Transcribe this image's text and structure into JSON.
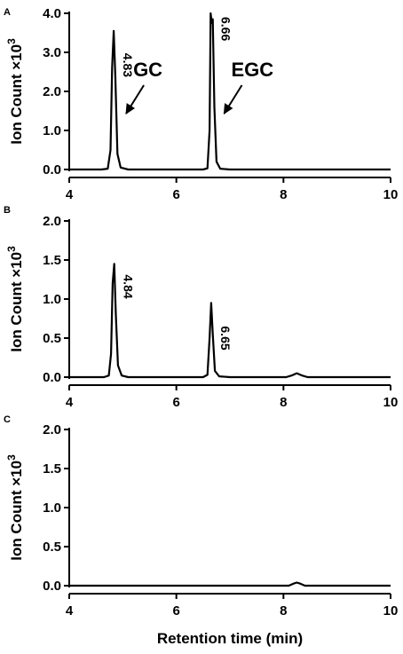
{
  "chart_data": [
    {
      "panel": "A",
      "type": "line",
      "xlabel": "",
      "ylabel": "Ion Count",
      "ylabel_multiplier": "×10",
      "ylabel_exponent": "3",
      "xlim": [
        4,
        10
      ],
      "ylim": [
        0,
        4.0
      ],
      "xticks": [
        "4",
        "6",
        "8",
        "10"
      ],
      "yticks": [
        "0.0",
        "1.0",
        "2.0",
        "3.0",
        "4.0"
      ],
      "series": [
        {
          "points": [
            [
              4.0,
              0.0
            ],
            [
              4.6,
              0.0
            ],
            [
              4.72,
              0.02
            ],
            [
              4.77,
              0.5
            ],
            [
              4.8,
              2.6
            ],
            [
              4.83,
              3.55
            ],
            [
              4.86,
              2.4
            ],
            [
              4.9,
              0.4
            ],
            [
              4.96,
              0.05
            ],
            [
              5.1,
              0.0
            ],
            [
              6.5,
              0.0
            ],
            [
              6.58,
              0.03
            ],
            [
              6.62,
              1.0
            ],
            [
              6.64,
              4.0
            ],
            [
              6.66,
              3.75
            ],
            [
              6.68,
              3.85
            ],
            [
              6.71,
              1.6
            ],
            [
              6.75,
              0.2
            ],
            [
              6.82,
              0.02
            ],
            [
              7.0,
              0.0
            ],
            [
              10.0,
              0.0
            ]
          ]
        }
      ],
      "peak_labels": [
        {
          "text": "4.83",
          "x": 4.83,
          "y": 3.55
        },
        {
          "text": "6.66",
          "x": 6.66,
          "y": 4.0
        }
      ],
      "annotations": [
        {
          "text": "GC",
          "x": 4.83,
          "y": 3.55
        },
        {
          "text": "EGC",
          "x": 6.66,
          "y": 4.0
        }
      ]
    },
    {
      "panel": "B",
      "type": "line",
      "xlabel": "",
      "ylabel": "Ion Count",
      "ylabel_multiplier": "×10",
      "ylabel_exponent": "3",
      "xlim": [
        4,
        10
      ],
      "ylim": [
        0,
        2.0
      ],
      "xticks": [
        "4",
        "6",
        "8",
        "10"
      ],
      "yticks": [
        "0.0",
        "0.5",
        "1.0",
        "1.5",
        "2.0"
      ],
      "series": [
        {
          "points": [
            [
              4.0,
              0.0
            ],
            [
              4.65,
              0.0
            ],
            [
              4.74,
              0.02
            ],
            [
              4.78,
              0.3
            ],
            [
              4.81,
              1.2
            ],
            [
              4.84,
              1.45
            ],
            [
              4.87,
              0.8
            ],
            [
              4.91,
              0.15
            ],
            [
              4.98,
              0.02
            ],
            [
              5.1,
              0.0
            ],
            [
              6.5,
              0.0
            ],
            [
              6.58,
              0.03
            ],
            [
              6.62,
              0.5
            ],
            [
              6.65,
              0.95
            ],
            [
              6.68,
              0.55
            ],
            [
              6.72,
              0.08
            ],
            [
              6.8,
              0.01
            ],
            [
              7.0,
              0.0
            ],
            [
              8.05,
              0.0
            ],
            [
              8.15,
              0.02
            ],
            [
              8.25,
              0.05
            ],
            [
              8.35,
              0.02
            ],
            [
              8.45,
              0.0
            ],
            [
              10.0,
              0.0
            ]
          ]
        }
      ],
      "peak_labels": [
        {
          "text": "4.84",
          "x": 4.84,
          "y": 1.45
        },
        {
          "text": "6.65",
          "x": 6.65,
          "y": 0.95
        }
      ],
      "annotations": []
    },
    {
      "panel": "C",
      "type": "line",
      "xlabel": "Retention time (min)",
      "ylabel": "Ion Count",
      "ylabel_multiplier": "×10",
      "ylabel_exponent": "3",
      "xlim": [
        4,
        10
      ],
      "ylim": [
        0,
        2.0
      ],
      "xticks": [
        "4",
        "6",
        "8",
        "10"
      ],
      "yticks": [
        "0.0",
        "0.5",
        "1.0",
        "1.5",
        "2.0"
      ],
      "series": [
        {
          "points": [
            [
              4.0,
              0.0
            ],
            [
              8.1,
              0.0
            ],
            [
              8.2,
              0.03
            ],
            [
              8.25,
              0.04
            ],
            [
              8.3,
              0.03
            ],
            [
              8.4,
              0.0
            ],
            [
              10.0,
              0.0
            ]
          ]
        }
      ],
      "peak_labels": [],
      "annotations": []
    }
  ]
}
